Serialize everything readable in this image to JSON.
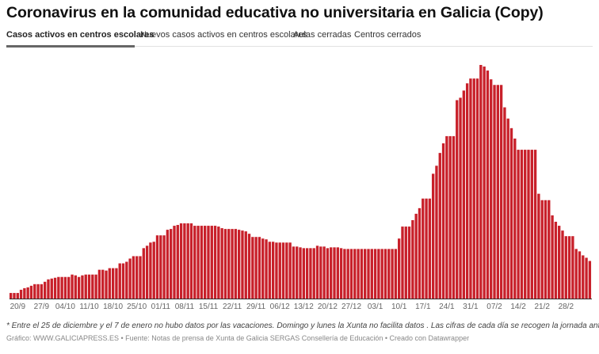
{
  "title": "Coronavirus en la comunidad educativa no universitaria en Galicia (Copy)",
  "tabs": [
    {
      "label": "Casos activos en centros escolares",
      "active": true
    },
    {
      "label": "Nuevos casos activos en centros escolares",
      "active": false
    },
    {
      "label": "Aulas cerradas",
      "active": false
    },
    {
      "label": "Centros cerrados",
      "active": false
    }
  ],
  "colors": {
    "bar": "#c8202a",
    "axis": "#333333",
    "tab_underline": "#666666"
  },
  "chart_data": {
    "type": "bar",
    "title": "",
    "xlabel": "",
    "ylabel": "",
    "grid": false,
    "tick_labels": [
      "20/9",
      "27/9",
      "04/10",
      "11/10",
      "18/10",
      "25/10",
      "01/11",
      "08/11",
      "15/11",
      "22/11",
      "29/11",
      "06/12",
      "13/12",
      "20/12",
      "27/12",
      "03/1",
      "10/1",
      "17/1",
      "24/1",
      "31/1",
      "07/2",
      "14/2",
      "21/2",
      "28/2"
    ],
    "values": [
      7,
      7,
      7,
      11,
      13,
      14,
      16,
      18,
      18,
      18,
      21,
      24,
      25,
      26,
      27,
      27,
      27,
      27,
      30,
      29,
      27,
      29,
      30,
      30,
      30,
      30,
      36,
      36,
      35,
      38,
      38,
      38,
      44,
      44,
      46,
      50,
      53,
      53,
      53,
      63,
      66,
      70,
      71,
      79,
      79,
      79,
      86,
      87,
      91,
      92,
      94,
      94,
      94,
      94,
      91,
      91,
      91,
      91,
      91,
      91,
      91,
      90,
      88,
      87,
      87,
      87,
      87,
      86,
      85,
      84,
      81,
      77,
      77,
      77,
      75,
      74,
      71,
      71,
      70,
      70,
      70,
      70,
      70,
      65,
      65,
      64,
      63,
      63,
      63,
      63,
      66,
      65,
      65,
      63,
      64,
      64,
      64,
      63,
      62,
      62,
      62,
      62,
      62,
      62,
      62,
      62,
      62,
      62,
      62,
      62,
      62,
      62,
      62,
      62,
      75,
      90,
      90,
      90,
      98,
      106,
      113,
      125,
      125,
      125,
      156,
      166,
      182,
      194,
      203,
      203,
      203,
      248,
      251,
      260,
      269,
      275,
      275,
      275,
      292,
      290,
      285,
      274,
      267,
      267,
      267,
      239,
      225,
      213,
      200,
      186,
      186,
      186,
      186,
      186,
      186,
      131,
      123,
      123,
      123,
      104,
      96,
      91,
      85,
      78,
      78,
      78,
      62,
      59,
      54,
      51,
      47
    ]
  },
  "footnote": "* Entre el 25 de diciembre y el 7 de enero no hubo datos por las vacaciones. Domingo y lunes la Xunta no facilita datos . Las cifras de cada día se recogen la jornada anterior",
  "credit": "Gráfico: WWW.GALICIAPRESS.ES • Fuente: Notas de prensa de Xunta de Galicia SERGAS Consellería de Educación • Creado con Datawrapper"
}
